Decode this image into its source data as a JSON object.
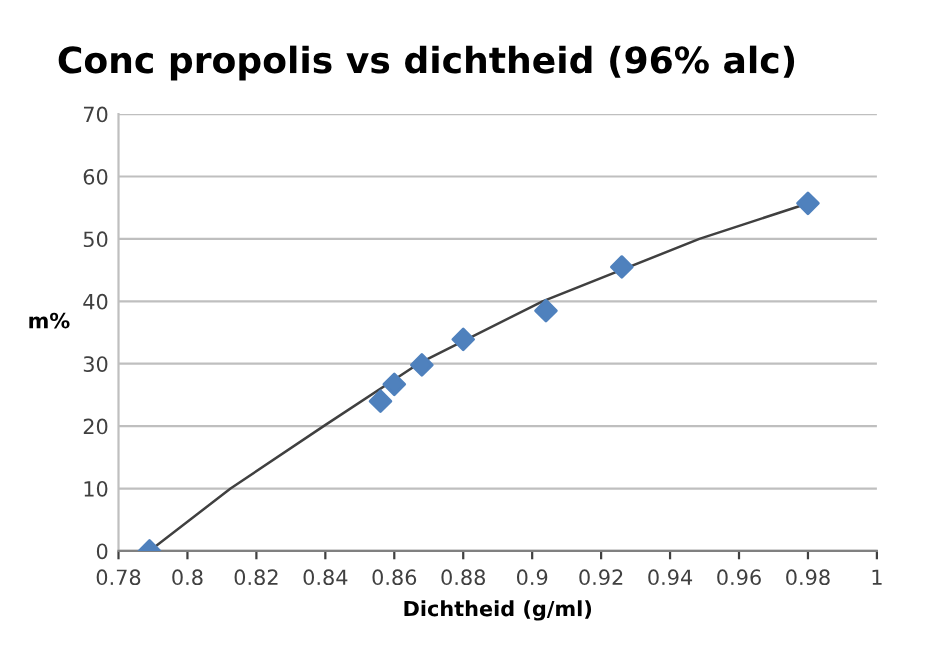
{
  "chart_data": {
    "type": "scatter",
    "title": "Conc propolis vs dichtheid (96% alc)",
    "xlabel": "Dichtheid (g/ml)",
    "ylabel": "m%",
    "series": [
      {
        "color": "#4f81bd",
        "marker": "diamond",
        "x": [
          0.789,
          0.856,
          0.86,
          0.868,
          0.88,
          0.904,
          0.926,
          0.98
        ],
        "values": [
          0,
          24,
          26.7,
          29.8,
          33.9,
          38.5,
          45.5,
          55.7
        ]
      },
      {
        "type": "line",
        "color": "#404040",
        "marker": "none",
        "line_style": "solid",
        "x": [
          0.789,
          0.8125,
          0.8395,
          0.867,
          0.903,
          0.9485,
          0.98
        ],
        "values": [
          0,
          10,
          20,
          30,
          40,
          50,
          55.7
        ]
      }
    ],
    "xlim": [
      0.78,
      1
    ],
    "xticks": [
      {
        "value": 0.78,
        "label": "0.78"
      },
      {
        "value": 0.8,
        "label": "0.8"
      },
      {
        "value": 0.82,
        "label": "0.82"
      },
      {
        "value": 0.84,
        "label": "0.84"
      },
      {
        "value": 0.86,
        "label": "0.86"
      },
      {
        "value": 0.88,
        "label": "0.88"
      },
      {
        "value": 0.9,
        "label": "0.9"
      },
      {
        "value": 0.92,
        "label": "0.92"
      },
      {
        "value": 0.94,
        "label": "0.94"
      },
      {
        "value": 0.96,
        "label": "0.96"
      },
      {
        "value": 0.98,
        "label": "0.98"
      },
      {
        "value": 1,
        "label": "1"
      }
    ],
    "ylim": [
      0,
      70
    ],
    "yticks": [
      0,
      10,
      20,
      30,
      40,
      50,
      60,
      70
    ],
    "grid": "y",
    "legend": false
  }
}
